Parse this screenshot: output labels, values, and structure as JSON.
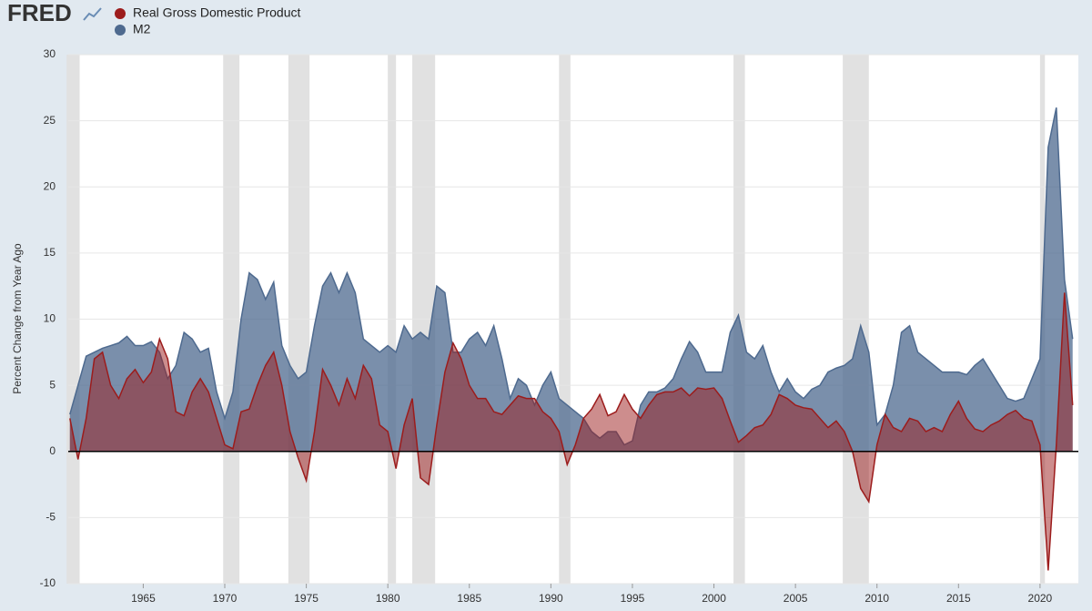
{
  "header": {
    "logo": "FRED"
  },
  "chart_data": {
    "type": "area",
    "y_label": "Percent Change from Year Ago",
    "x": [
      1960.5,
      1961,
      1961.5,
      1962,
      1962.5,
      1963,
      1963.5,
      1964,
      1964.5,
      1965,
      1965.5,
      1966,
      1966.5,
      1967,
      1967.5,
      1968,
      1968.5,
      1969,
      1969.5,
      1970,
      1970.5,
      1971,
      1971.5,
      1972,
      1972.5,
      1973,
      1973.5,
      1974,
      1974.5,
      1975,
      1975.5,
      1976,
      1976.5,
      1977,
      1977.5,
      1978,
      1978.5,
      1979,
      1979.5,
      1980,
      1980.5,
      1981,
      1981.5,
      1982,
      1982.5,
      1983,
      1983.5,
      1984,
      1984.5,
      1985,
      1985.5,
      1986,
      1986.5,
      1987,
      1987.5,
      1988,
      1988.5,
      1989,
      1989.5,
      1990,
      1990.5,
      1991,
      1991.5,
      1992,
      1992.5,
      1993,
      1993.5,
      1994,
      1994.5,
      1995,
      1995.5,
      1996,
      1996.5,
      1997,
      1997.5,
      1998,
      1998.5,
      1999,
      1999.5,
      2000,
      2000.5,
      2001,
      2001.5,
      2002,
      2002.5,
      2003,
      2003.5,
      2004,
      2004.5,
      2005,
      2005.5,
      2006,
      2006.5,
      2007,
      2007.5,
      2008,
      2008.5,
      2009,
      2009.5,
      2010,
      2010.5,
      2011,
      2011.5,
      2012,
      2012.5,
      2013,
      2013.5,
      2014,
      2014.5,
      2015,
      2015.5,
      2016,
      2016.5,
      2017,
      2017.5,
      2018,
      2018.5,
      2019,
      2019.5,
      2020,
      2020.5,
      2021,
      2021.5,
      2022
    ],
    "series": [
      {
        "name": "M2",
        "color": "#4e6a8f",
        "values": [
          2.8,
          5.0,
          7.2,
          7.5,
          7.8,
          8.0,
          8.2,
          8.7,
          8.0,
          8.0,
          8.3,
          7.5,
          5.5,
          6.5,
          9.0,
          8.5,
          7.5,
          7.8,
          4.5,
          2.5,
          4.5,
          10.0,
          13.5,
          13.0,
          11.5,
          12.8,
          8.0,
          6.5,
          5.5,
          6.0,
          9.5,
          12.5,
          13.5,
          12.0,
          13.5,
          12.0,
          8.5,
          8.0,
          7.5,
          8.0,
          7.5,
          9.5,
          8.5,
          9.0,
          8.5,
          12.5,
          12.0,
          7.5,
          7.5,
          8.5,
          9.0,
          8.0,
          9.5,
          7.0,
          4.0,
          5.5,
          5.0,
          3.5,
          5.0,
          6.0,
          4.0,
          3.5,
          3.0,
          2.5,
          1.5,
          1.0,
          1.5,
          1.5,
          0.5,
          0.8,
          3.5,
          4.5,
          4.5,
          4.8,
          5.5,
          7.0,
          8.3,
          7.5,
          6.0,
          6.0,
          6.0,
          9.0,
          10.3,
          7.5,
          7.0,
          8.0,
          6.0,
          4.5,
          5.5,
          4.5,
          4.0,
          4.7,
          5.0,
          6.0,
          6.3,
          6.5,
          7.0,
          9.5,
          7.5,
          2.0,
          2.8,
          5.0,
          9.0,
          9.5,
          7.5,
          7.0,
          6.5,
          6.0,
          6.0,
          6.0,
          5.8,
          6.5,
          7.0,
          6.0,
          5.0,
          4.0,
          3.8,
          4.0,
          5.5,
          7.0,
          23.0,
          26.0,
          13.0,
          8.5
        ]
      },
      {
        "name": "Real Gross Domestic Product",
        "color": "#9c1c1c",
        "values": [
          2.5,
          -0.6,
          2.5,
          7.0,
          7.5,
          5.0,
          4.0,
          5.5,
          6.2,
          5.2,
          6.0,
          8.5,
          7.0,
          3.0,
          2.7,
          4.5,
          5.5,
          4.5,
          2.5,
          0.5,
          0.2,
          3.0,
          3.2,
          5.0,
          6.5,
          7.5,
          5.0,
          1.5,
          -0.5,
          -2.2,
          1.5,
          6.2,
          5.0,
          3.5,
          5.5,
          4.0,
          6.5,
          5.5,
          2.0,
          1.5,
          -1.3,
          2.0,
          4.0,
          -2.0,
          -2.5,
          2.0,
          6.0,
          8.2,
          7.0,
          5.0,
          4.0,
          4.0,
          3.0,
          2.8,
          3.5,
          4.2,
          4.0,
          4.0,
          3.0,
          2.5,
          1.5,
          -1.0,
          0.5,
          2.5,
          3.2,
          4.3,
          2.7,
          3.0,
          4.3,
          3.2,
          2.5,
          3.5,
          4.3,
          4.5,
          4.5,
          4.8,
          4.2,
          4.8,
          4.7,
          4.8,
          4.0,
          2.3,
          0.7,
          1.2,
          1.8,
          2.0,
          2.8,
          4.3,
          4.0,
          3.5,
          3.3,
          3.2,
          2.5,
          1.8,
          2.3,
          1.5,
          0.0,
          -2.8,
          -3.8,
          0.5,
          2.8,
          1.8,
          1.5,
          2.5,
          2.3,
          1.5,
          1.8,
          1.5,
          2.8,
          3.8,
          2.5,
          1.7,
          1.5,
          2.0,
          2.3,
          2.8,
          3.1,
          2.5,
          2.3,
          0.5,
          -9.0,
          0.5,
          12.0,
          3.5
        ]
      }
    ],
    "recessions": [
      [
        1960.3,
        1961.1
      ],
      [
        1969.9,
        1970.9
      ],
      [
        1973.9,
        1975.2
      ],
      [
        1980.0,
        1980.5
      ],
      [
        1981.5,
        1982.9
      ],
      [
        1990.5,
        1991.2
      ],
      [
        2001.2,
        2001.9
      ],
      [
        2007.9,
        2009.5
      ],
      [
        2020.0,
        2020.3
      ]
    ],
    "xlim": [
      1960.4,
      2022.35
    ],
    "xticks": [
      1965,
      1970,
      1975,
      1980,
      1985,
      1990,
      1995,
      2000,
      2005,
      2010,
      2015,
      2020
    ],
    "ylim": [
      -10,
      30
    ],
    "yticks": [
      -10,
      -5,
      0,
      5,
      10,
      15,
      20,
      25,
      30
    ],
    "grid": true
  }
}
